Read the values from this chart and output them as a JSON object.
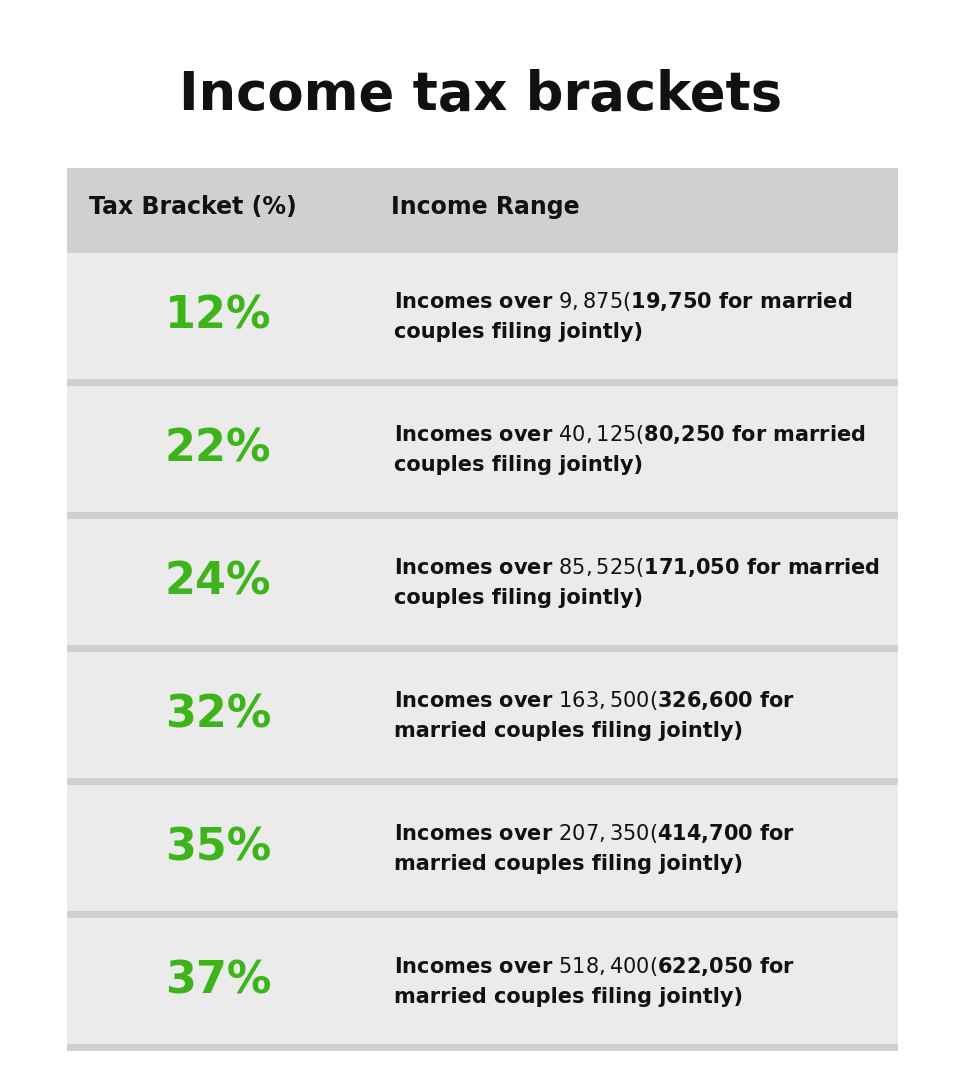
{
  "title": "Income tax brackets",
  "title_fontsize": 38,
  "col1_header": "Tax Bracket (%)",
  "col2_header": "Income Range",
  "header_fontsize": 17,
  "bracket_fontsize": 32,
  "desc_fontsize": 15,
  "green_color": "#3db51a",
  "black_color": "#111111",
  "header_bg": "#d0d0d0",
  "row_bg_light": "#ebebeb",
  "row_bg_dark": "#e2e2e2",
  "white_bg": "#ffffff",
  "rows": [
    {
      "bracket": "12%",
      "description": "Incomes over $9,875 ($19,750 for married\ncouples filing jointly)"
    },
    {
      "bracket": "22%",
      "description": "Incomes over $40,125 ($80,250 for married\ncouples filing jointly)"
    },
    {
      "bracket": "24%",
      "description": "Incomes over $85,525 ($171,050 for married\ncouples filing jointly)"
    },
    {
      "bracket": "32%",
      "description": "Incomes over $163,500 ($326,600 for\nmarried couples filing jointly)"
    },
    {
      "bracket": "35%",
      "description": "Incomes over $207,350 ($414,700 for\nmarried couples filing jointly)"
    },
    {
      "bracket": "37%",
      "description": "Incomes over $518,400 ($622,050 for\nmarried couples filing jointly)"
    }
  ]
}
